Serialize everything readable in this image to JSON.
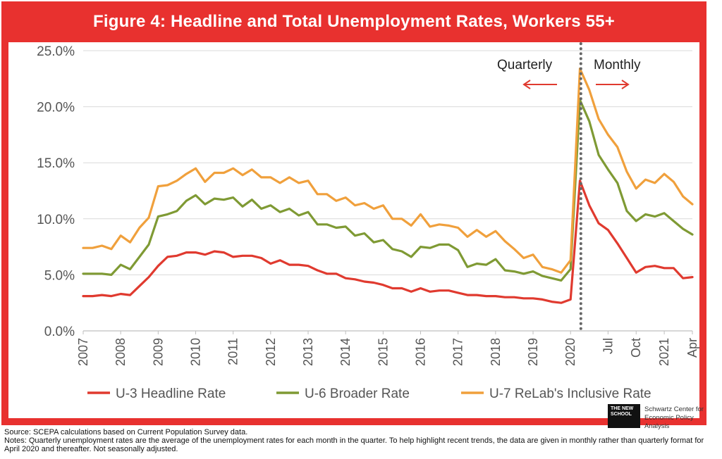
{
  "title": "Figure 4: Headline and Total Unemployment Rates, Workers 55+",
  "annotations": {
    "left": "Quarterly",
    "right": "Monthly"
  },
  "logo": {
    "mark": "THE NEW SCHOOL",
    "line1": "Schwartz Center for",
    "line2": "Economic Policy Analysis"
  },
  "footer": {
    "source": "Source: SCEPA calculations based on Current Population Survey data.",
    "notes": "Notes: Quarterly unemployment rates are the average of the unemployment rates for each month in the quarter. To help highlight recent trends, the data are given in monthly rather than quarterly format for April 2020 and thereafter. Not seasonally adjusted."
  },
  "colors": {
    "u3": "#e03a2f",
    "u6": "#7f9a34",
    "u7": "#f0a03c",
    "frame": "#e8312f",
    "grid": "#d9d9d9"
  },
  "chart_data": {
    "type": "line",
    "title": "Figure 4: Headline and Total Unemployment Rates, Workers 55+",
    "ylim": [
      0,
      25
    ],
    "yticks": [
      "0.0%",
      "5.0%",
      "10.0%",
      "15.0%",
      "20.0%",
      "25.0%"
    ],
    "grid": true,
    "legend_position": "bottom",
    "xtick_labels": [
      {
        "label": "2007",
        "index": 0
      },
      {
        "label": "2008",
        "index": 4
      },
      {
        "label": "2009",
        "index": 8
      },
      {
        "label": "2010",
        "index": 12
      },
      {
        "label": "2011",
        "index": 16
      },
      {
        "label": "2012",
        "index": 20
      },
      {
        "label": "2013",
        "index": 24
      },
      {
        "label": "2014",
        "index": 28
      },
      {
        "label": "2015",
        "index": 32
      },
      {
        "label": "2016",
        "index": 36
      },
      {
        "label": "2017",
        "index": 40
      },
      {
        "label": "2018",
        "index": 44
      },
      {
        "label": "2019",
        "index": 48
      },
      {
        "label": "2020",
        "index": 52
      },
      {
        "label": "Jul",
        "index": 56
      },
      {
        "label": "Oct",
        "index": 59
      },
      {
        "label": "2021",
        "index": 62
      },
      {
        "label": "Apr",
        "index": 65
      }
    ],
    "divider_index": 53.1,
    "series": [
      {
        "name": "U-3 Headline Rate",
        "key": "u3",
        "values": [
          3.1,
          3.1,
          3.2,
          3.1,
          3.3,
          3.2,
          4.0,
          4.8,
          5.8,
          6.6,
          6.7,
          7.0,
          7.0,
          6.8,
          7.1,
          7.0,
          6.6,
          6.7,
          6.7,
          6.5,
          6.0,
          6.3,
          5.9,
          5.9,
          5.8,
          5.4,
          5.1,
          5.1,
          4.7,
          4.6,
          4.4,
          4.3,
          4.1,
          3.8,
          3.8,
          3.5,
          3.8,
          3.5,
          3.6,
          3.6,
          3.4,
          3.2,
          3.2,
          3.1,
          3.1,
          3.0,
          3.0,
          2.9,
          2.9,
          2.8,
          2.6,
          2.5,
          2.8,
          13.4,
          11.2,
          9.6,
          9.0,
          7.8,
          6.5,
          5.2,
          5.7,
          5.8,
          5.6,
          5.6,
          4.7,
          4.8
        ]
      },
      {
        "name": "U-6 Broader Rate",
        "key": "u6",
        "values": [
          5.1,
          5.1,
          5.1,
          5.0,
          5.9,
          5.5,
          6.6,
          7.7,
          10.2,
          10.4,
          10.7,
          11.6,
          12.1,
          11.3,
          11.8,
          11.7,
          11.9,
          11.1,
          11.7,
          10.9,
          11.2,
          10.6,
          10.9,
          10.3,
          10.6,
          9.5,
          9.5,
          9.2,
          9.3,
          8.5,
          8.7,
          7.9,
          8.1,
          7.3,
          7.1,
          6.6,
          7.5,
          7.4,
          7.7,
          7.7,
          7.2,
          5.7,
          6.0,
          5.9,
          6.4,
          5.4,
          5.3,
          5.1,
          5.3,
          4.9,
          4.7,
          4.5,
          5.5,
          20.6,
          18.7,
          15.7,
          14.4,
          13.2,
          10.7,
          9.8,
          10.4,
          10.2,
          10.5,
          9.8,
          9.1,
          8.6
        ]
      },
      {
        "name": "U-7 ReLab's Inclusive Rate",
        "key": "u7",
        "values": [
          7.4,
          7.4,
          7.6,
          7.3,
          8.5,
          7.9,
          9.2,
          10.1,
          12.9,
          13.0,
          13.4,
          14.0,
          14.5,
          13.3,
          14.1,
          14.1,
          14.5,
          13.9,
          14.4,
          13.7,
          13.7,
          13.2,
          13.7,
          13.2,
          13.4,
          12.2,
          12.2,
          11.6,
          11.9,
          11.2,
          11.4,
          10.9,
          11.2,
          10.0,
          10.0,
          9.4,
          10.4,
          9.3,
          9.5,
          9.4,
          9.2,
          8.4,
          9.0,
          8.4,
          8.9,
          8.0,
          7.3,
          6.5,
          6.8,
          5.7,
          5.5,
          5.2,
          6.3,
          23.4,
          21.5,
          18.9,
          17.5,
          16.4,
          14.2,
          12.7,
          13.5,
          13.2,
          14.0,
          13.3,
          12.0,
          11.3
        ]
      }
    ]
  }
}
